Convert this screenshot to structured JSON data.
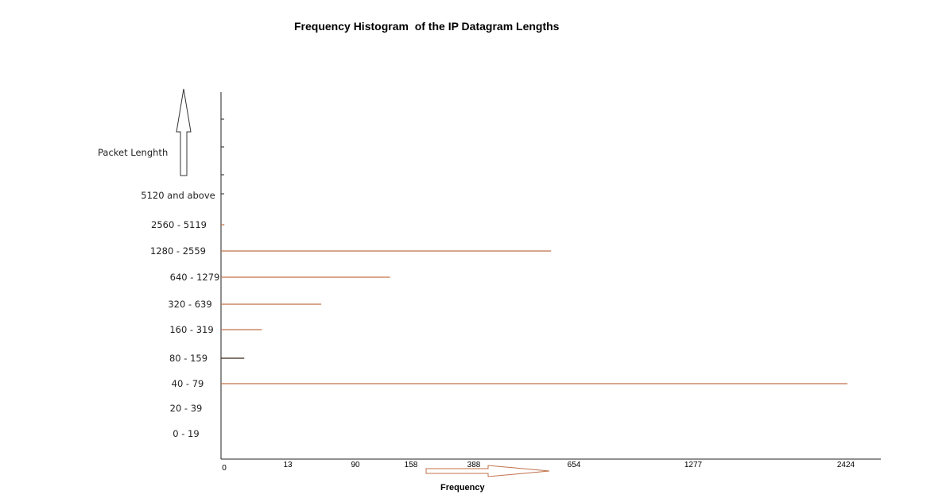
{
  "chart_data": {
    "type": "bar",
    "orientation": "horizontal",
    "title": "Frequency Histogram  of the IP Datagram Lengths",
    "xlabel": "Frequency",
    "ylabel": "Packet Lenghth",
    "categories": [
      "0 - 19",
      "20 - 39",
      "40 - 79",
      "80 - 159",
      "160 - 319",
      "320 - 639",
      "640 - 1279",
      "1280 - 2559",
      "2560 - 5119",
      "5120 and above"
    ],
    "values": [
      0,
      0,
      2424,
      90,
      158,
      388,
      654,
      1277,
      13,
      0
    ],
    "x_ticks": [
      "0",
      "13",
      "90",
      "158",
      "388",
      "654",
      "1277",
      "2424"
    ],
    "colors": {
      "bar": "#c0704a",
      "bar_dark": "#3a2418",
      "axis": "#222222"
    },
    "grid": false,
    "legend": "none"
  }
}
